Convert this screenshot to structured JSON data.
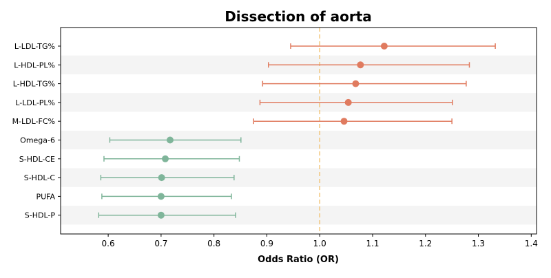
{
  "chart_data": {
    "type": "forest",
    "title": "Dissection of aorta",
    "xlabel": "Odds Ratio (OR)",
    "ylabel": "",
    "xlim": [
      0.51,
      1.41
    ],
    "xticks": [
      0.6,
      0.7,
      0.8,
      0.9,
      1.0,
      1.1,
      1.2,
      1.3,
      1.4
    ],
    "xtick_labels": [
      "0.6",
      "0.7",
      "0.8",
      "0.9",
      "1.0",
      "1.1",
      "1.2",
      "1.3",
      "1.4"
    ],
    "reference_line": 1.0,
    "grid": false,
    "row_shading": "alternating",
    "colors": {
      "positive": "#E07B5F",
      "negative": "#7FB59A",
      "reference_line": "#F2C478",
      "band": "#F4F4F4"
    },
    "rows": [
      {
        "label": "L-LDL-TG%",
        "or": 1.122,
        "lower": 0.945,
        "upper": 1.332,
        "group": "positive"
      },
      {
        "label": "L-HDL-PL%",
        "or": 1.077,
        "lower": 0.903,
        "upper": 1.283,
        "group": "positive"
      },
      {
        "label": "L-HDL-TG%",
        "or": 1.068,
        "lower": 0.892,
        "upper": 1.277,
        "group": "positive"
      },
      {
        "label": "L-LDL-PL%",
        "or": 1.054,
        "lower": 0.887,
        "upper": 1.251,
        "group": "positive"
      },
      {
        "label": "M-LDL-FC%",
        "or": 1.046,
        "lower": 0.875,
        "upper": 1.25,
        "group": "positive"
      },
      {
        "label": "Omega-6",
        "or": 0.717,
        "lower": 0.603,
        "upper": 0.851,
        "group": "negative"
      },
      {
        "label": "S-HDL-CE",
        "or": 0.708,
        "lower": 0.592,
        "upper": 0.848,
        "group": "negative"
      },
      {
        "label": "S-HDL-C",
        "or": 0.701,
        "lower": 0.586,
        "upper": 0.838,
        "group": "negative"
      },
      {
        "label": "PUFA",
        "or": 0.7,
        "lower": 0.588,
        "upper": 0.833,
        "group": "negative"
      },
      {
        "label": "S-HDL-P",
        "or": 0.7,
        "lower": 0.582,
        "upper": 0.841,
        "group": "negative"
      }
    ]
  }
}
